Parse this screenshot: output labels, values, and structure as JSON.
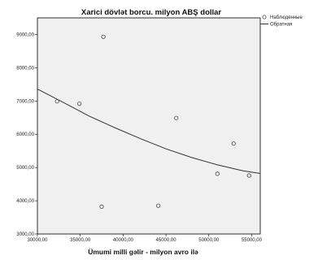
{
  "chart_data": {
    "type": "scatter",
    "title": "Xarici dövlət borcu. milyon ABŞ dollar",
    "xlabel": "Ümumi milli gəlir - milyon avro ilə",
    "ylabel": "",
    "xlim": [
      30000,
      56000
    ],
    "ylim": [
      3000,
      9500
    ],
    "xticks": [
      30000,
      35000,
      40000,
      45000,
      50000,
      55000
    ],
    "yticks": [
      3000,
      4000,
      5000,
      6000,
      7000,
      8000,
      9000
    ],
    "xtick_labels": [
      "30000,00",
      "35000,00",
      "40000,00",
      "45000,00",
      "50000,00",
      "55000,00"
    ],
    "ytick_labels": [
      "3000,00",
      "4000,00",
      "5000,00",
      "6000,00",
      "7000,00",
      "8000,00",
      "9000,00"
    ],
    "grid": false,
    "legend_position": "right",
    "series": [
      {
        "name": "Наблюденные",
        "kind": "points",
        "x": [
          32300,
          34900,
          37700,
          37500,
          44100,
          46200,
          51000,
          52900,
          54700
        ],
        "y": [
          6990,
          6920,
          8930,
          3820,
          3850,
          6490,
          4810,
          5720,
          4760
        ]
      },
      {
        "name": "Обратная",
        "kind": "fit-line",
        "x": [
          30000,
          33000,
          36000,
          39000,
          42000,
          45000,
          48000,
          51000,
          54000,
          56000
        ],
        "y": [
          7360,
          6960,
          6550,
          6200,
          5870,
          5560,
          5300,
          5080,
          4900,
          4820
        ]
      }
    ],
    "style": {
      "plot_background": "#f0f0f0",
      "point_stroke": "#444444",
      "line_color": "#333333",
      "axis_color": "#000000"
    }
  }
}
